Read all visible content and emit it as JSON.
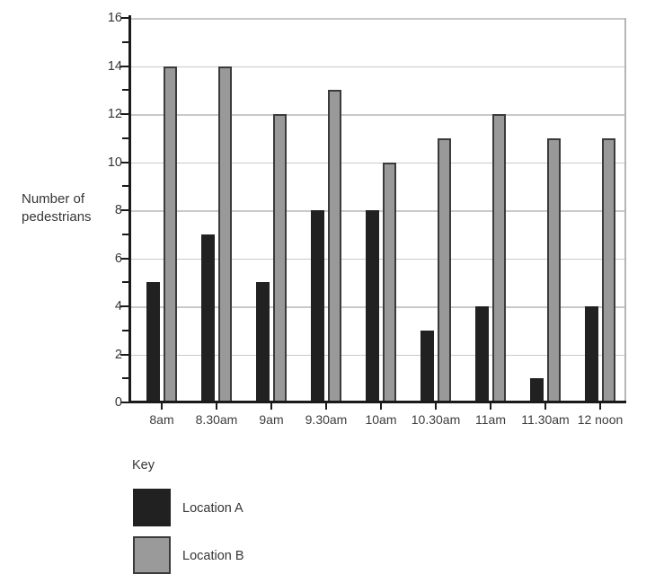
{
  "chart_data": {
    "type": "bar",
    "title": "",
    "categories": [
      "8am",
      "8.30am",
      "9am",
      "9.30am",
      "10am",
      "10.30am",
      "11am",
      "11.30am",
      "12 noon"
    ],
    "series": [
      {
        "name": "Location A",
        "color": "#212121",
        "values": [
          5,
          7,
          5,
          8,
          8,
          3,
          4,
          1,
          4
        ]
      },
      {
        "name": "Location B",
        "color": "#999999",
        "border_color": "#3b3b3b",
        "values": [
          14,
          14,
          12,
          13,
          10,
          11,
          12,
          11,
          11
        ]
      }
    ],
    "xlabel": "",
    "ylabel": "Number of pedestrians",
    "ylabel_lines": [
      "Number of",
      "pedestrians"
    ],
    "ylim": [
      0,
      16
    ],
    "yticks": [
      0,
      2,
      4,
      6,
      8,
      10,
      12,
      14,
      16
    ],
    "minor_yticks": [
      1,
      3,
      5,
      7,
      9,
      11,
      13,
      15
    ],
    "grid": true,
    "gridline_color": "#c9c9c9",
    "axis_color": "#1a1a1a",
    "legend_position": "bottom-left"
  },
  "key": {
    "title": "Key",
    "items": [
      {
        "label": "Location A",
        "color": "#212121",
        "border_color": "#212121"
      },
      {
        "label": "Location B",
        "color": "#9a9a9a",
        "border_color": "#3b3b3b"
      }
    ]
  }
}
